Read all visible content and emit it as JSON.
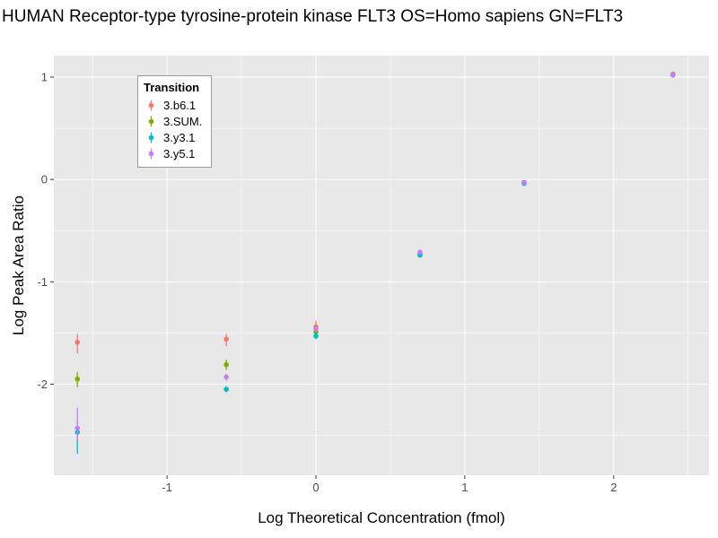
{
  "chart_data": {
    "type": "scatter",
    "title": "HUMAN Receptor-type tyrosine-protein kinase FLT3 OS=Homo sapiens GN=FLT3",
    "xlabel": "Log Theoretical Concentration (fmol)",
    "ylabel": "Log Peak Area Ratio",
    "legend_title": "Transition",
    "legend_position": "top-left-inside",
    "grid": true,
    "panel_background": "#E8E8E8",
    "gridline_color": "#FFFFFF",
    "tick_color": "#333333",
    "tick_label_color": "#4d4d4d",
    "xlim": [
      -1.76,
      2.64
    ],
    "ylim": [
      -2.89,
      1.21
    ],
    "x_ticks": [
      -1,
      0,
      1,
      2
    ],
    "y_ticks": [
      -2,
      -1,
      0,
      1
    ],
    "x_minor_ticks": [
      -1.5,
      -0.5,
      0.5,
      1.5,
      2.5
    ],
    "y_minor_ticks": [
      -2.5,
      -1.5,
      -0.5,
      0.5
    ],
    "x": [
      -1.602,
      -0.602,
      0,
      0.699,
      1.398,
      2.398
    ],
    "series": [
      {
        "name": "3.b6.1",
        "color": "#F8766D",
        "y": [
          -1.59,
          -1.56,
          -1.44,
          -0.73,
          -0.03,
          1.03
        ],
        "ymin": [
          -1.7,
          -1.63,
          -1.52,
          -0.75,
          -0.05,
          1.01
        ],
        "ymax": [
          -1.51,
          -1.51,
          -1.38,
          -0.71,
          -0.02,
          1.04
        ]
      },
      {
        "name": "3.SUM.",
        "color": "#7CAE00",
        "y": [
          -1.95,
          -1.81,
          -1.49,
          -0.73,
          -0.03,
          1.02
        ],
        "ymin": [
          -2.03,
          -1.86,
          -1.52,
          -0.74,
          -0.04,
          1.01
        ],
        "ymax": [
          -1.88,
          -1.76,
          -1.46,
          -0.72,
          -0.02,
          1.03
        ]
      },
      {
        "name": "3.y3.1",
        "color": "#00BFC4",
        "y": [
          -2.47,
          -2.05,
          -1.53,
          -0.74,
          -0.04,
          1.02
        ],
        "ymin": [
          -2.68,
          -2.08,
          -1.56,
          -0.75,
          -0.05,
          1.01
        ],
        "ymax": [
          -2.36,
          -2.02,
          -1.5,
          -0.73,
          -0.03,
          1.03
        ]
      },
      {
        "name": "3.y5.1",
        "color": "#C77CFF",
        "y": [
          -2.43,
          -1.93,
          -1.46,
          -0.71,
          -0.03,
          1.02
        ],
        "ymin": [
          -2.55,
          -1.97,
          -1.49,
          -0.72,
          -0.04,
          1.01
        ],
        "ymax": [
          -2.23,
          -1.9,
          -1.43,
          -0.7,
          -0.02,
          1.03
        ]
      }
    ]
  }
}
